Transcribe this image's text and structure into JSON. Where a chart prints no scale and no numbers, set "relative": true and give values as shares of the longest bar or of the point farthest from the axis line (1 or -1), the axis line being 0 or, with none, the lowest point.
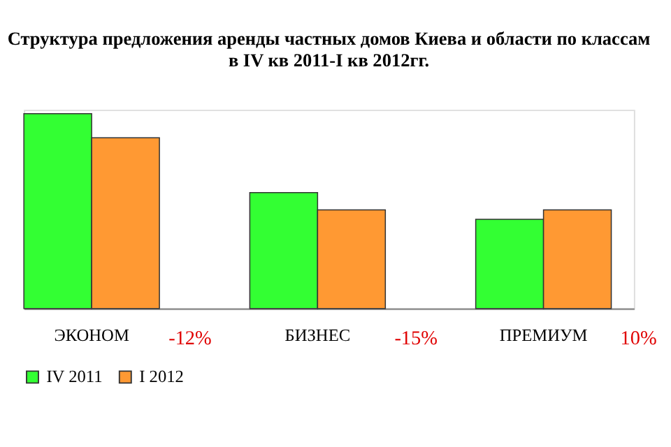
{
  "chart_data": {
    "type": "bar",
    "title": [
      "Структура предложения аренды частных домов Киева и области по классам",
      "в IV кв 2011-I кв 2012гг."
    ],
    "categories": [
      "ЭКОНОМ",
      "БИЗНЕС",
      "ПРЕМИУМ"
    ],
    "relative": true,
    "series": [
      {
        "name": "IV 2011",
        "color": "#33ff33",
        "values": [
          1,
          0.595,
          0.458
        ]
      },
      {
        "name": "I 2012",
        "color": "#ff9933",
        "values": [
          0.876,
          0.506,
          0.506
        ]
      }
    ],
    "annotations": [
      "-12%",
      "-15%",
      "10%"
    ],
    "legend": "bottom",
    "grid": false
  }
}
